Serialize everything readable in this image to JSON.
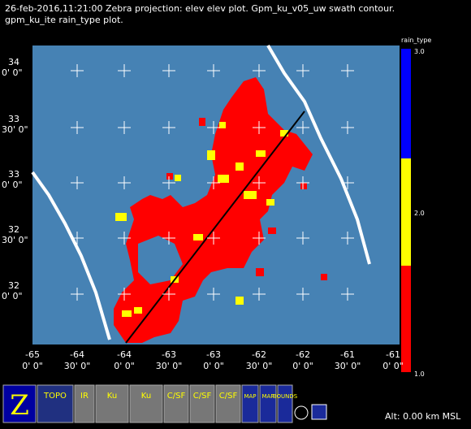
{
  "header": {
    "line1": "26-feb-2016,11:21:00  Zebra projection: elev elev  plot.  Gpm_ku_v05_uw swath contour.",
    "line2": "gpm_ku_ite rain_type  plot."
  },
  "y_labels": [
    {
      "deg": "34",
      "min": "0' 0\""
    },
    {
      "deg": "33",
      "min": "30' 0\""
    },
    {
      "deg": "33",
      "min": "0' 0\""
    },
    {
      "deg": "32",
      "min": "30' 0\""
    },
    {
      "deg": "32",
      "min": "0' 0\""
    }
  ],
  "x_labels": [
    {
      "deg": "-65",
      "min": "0' 0\""
    },
    {
      "deg": "-64",
      "min": "30' 0\""
    },
    {
      "deg": "-64",
      "min": "0' 0\""
    },
    {
      "deg": "-63",
      "min": "30' 0\""
    },
    {
      "deg": "-63",
      "min": "0' 0\""
    },
    {
      "deg": "-62",
      "min": "30' 0\""
    },
    {
      "deg": "-62",
      "min": "0' 0\""
    },
    {
      "deg": "-61",
      "min": "30' 0\""
    },
    {
      "deg": "-61",
      "min": "0' 0\""
    }
  ],
  "colorbar": {
    "title": "rain_type",
    "labels": [
      "3.0",
      "2.0",
      "1.0"
    ]
  },
  "toolbar": {
    "icons": [
      "Z",
      "TOPO",
      "IR",
      "Ku",
      "Ku",
      "C/SF",
      "C/SF",
      "C/SF",
      "MAP",
      "MAP",
      "BOUNDS"
    ]
  },
  "status": {
    "altitude": "Alt: 0.00 km MSL"
  }
}
